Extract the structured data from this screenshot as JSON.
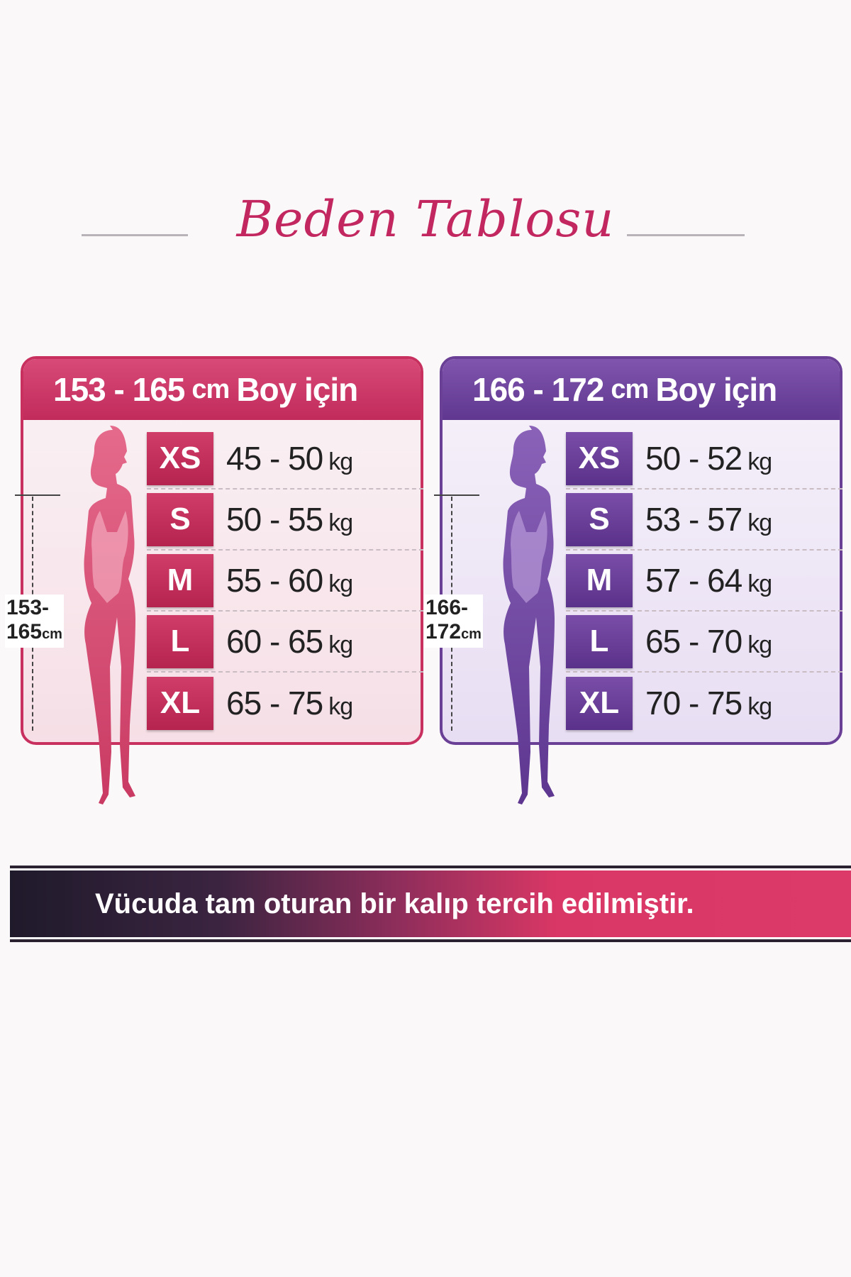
{
  "title": "Beden Tablosu",
  "colors": {
    "pink": "#c8315f",
    "purple": "#6a3f96",
    "title": "#c2285f"
  },
  "tables": [
    {
      "range": "153 - 165",
      "unit": "cm",
      "suffix": "Boy için",
      "height_label_top": "153-",
      "height_label_bottom": "165",
      "height_label_unit": "cm",
      "rows": [
        {
          "size": "XS",
          "weight": "45 - 50",
          "unit": "kg"
        },
        {
          "size": "S",
          "weight": "50 - 55",
          "unit": "kg"
        },
        {
          "size": "M",
          "weight": "55 - 60",
          "unit": "kg"
        },
        {
          "size": "L",
          "weight": "60 - 65",
          "unit": "kg"
        },
        {
          "size": "XL",
          "weight": "65 - 75",
          "unit": "kg"
        }
      ]
    },
    {
      "range": "166 - 172",
      "unit": "cm",
      "suffix": "Boy için",
      "height_label_top": "166-",
      "height_label_bottom": "172",
      "height_label_unit": "cm",
      "rows": [
        {
          "size": "XS",
          "weight": "50 - 52",
          "unit": "kg"
        },
        {
          "size": "S",
          "weight": "53 - 57",
          "unit": "kg"
        },
        {
          "size": "M",
          "weight": "57 - 64",
          "unit": "kg"
        },
        {
          "size": "L",
          "weight": "65 - 70",
          "unit": "kg"
        },
        {
          "size": "XL",
          "weight": "70 - 75",
          "unit": "kg"
        }
      ]
    }
  ],
  "banner": "Vücuda tam oturan bir kalıp tercih edilmiştir."
}
